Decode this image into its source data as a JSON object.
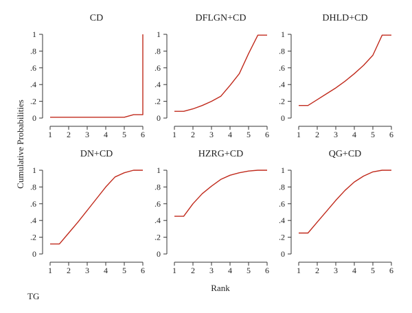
{
  "figure": {
    "ylabel": "Cumulative Probabilities",
    "xlabel": "Rank",
    "footer": "TG"
  },
  "colors": {
    "series_line": "#c0291b",
    "axis": "#333333",
    "text": "#222222"
  },
  "chart_data": [
    {
      "type": "line",
      "title": "CD",
      "xlabel": "Rank",
      "ylabel": "Cumulative Probabilities",
      "xlim": [
        1,
        6
      ],
      "ylim": [
        0,
        1
      ],
      "xticks": [
        "1",
        "2",
        "3",
        "4",
        "5",
        "6"
      ],
      "yticks": [
        "0",
        ".2",
        ".4",
        ".6",
        ".8",
        "1"
      ],
      "x": [
        1,
        4.5,
        5,
        5.5,
        6,
        6
      ],
      "values": [
        0.01,
        0.01,
        0.01,
        0.04,
        0.04,
        1.0
      ]
    },
    {
      "type": "line",
      "title": "DFLGN+CD",
      "xlabel": "Rank",
      "ylabel": "Cumulative Probabilities",
      "xlim": [
        1,
        6
      ],
      "ylim": [
        0,
        1
      ],
      "xticks": [
        "1",
        "2",
        "3",
        "4",
        "5",
        "6"
      ],
      "yticks": [
        "0",
        ".2",
        ".4",
        ".6",
        ".8",
        "1"
      ],
      "x": [
        1,
        1.5,
        2,
        2.5,
        3,
        3.5,
        4,
        4.5,
        5,
        5.5,
        6
      ],
      "values": [
        0.08,
        0.08,
        0.11,
        0.15,
        0.2,
        0.26,
        0.39,
        0.53,
        0.77,
        0.99,
        0.99
      ]
    },
    {
      "type": "line",
      "title": "DHLD+CD",
      "xlabel": "Rank",
      "ylabel": "Cumulative Probabilities",
      "xlim": [
        1,
        6
      ],
      "ylim": [
        0,
        1
      ],
      "xticks": [
        "1",
        "2",
        "3",
        "4",
        "5",
        "6"
      ],
      "yticks": [
        "0",
        ".2",
        ".4",
        ".6",
        ".8",
        "1"
      ],
      "x": [
        1,
        1.5,
        2,
        2.5,
        3,
        3.5,
        4,
        4.5,
        5,
        5.5,
        6
      ],
      "values": [
        0.15,
        0.15,
        0.22,
        0.29,
        0.36,
        0.44,
        0.53,
        0.63,
        0.75,
        0.99,
        0.99
      ]
    },
    {
      "type": "line",
      "title": "DN+CD",
      "xlabel": "Rank",
      "ylabel": "Cumulative Probabilities",
      "xlim": [
        1,
        6
      ],
      "ylim": [
        0,
        1
      ],
      "xticks": [
        "1",
        "2",
        "3",
        "4",
        "5",
        "6"
      ],
      "yticks": [
        "0",
        ".2",
        ".4",
        ".6",
        ".8",
        "1"
      ],
      "x": [
        1,
        1.5,
        2,
        2.5,
        3,
        3.5,
        4,
        4.5,
        5,
        5.5,
        6
      ],
      "values": [
        0.12,
        0.12,
        0.25,
        0.38,
        0.52,
        0.66,
        0.8,
        0.92,
        0.97,
        1.0,
        1.0
      ]
    },
    {
      "type": "line",
      "title": "HZRG+CD",
      "xlabel": "Rank",
      "ylabel": "Cumulative Probabilities",
      "xlim": [
        1,
        6
      ],
      "ylim": [
        0,
        1
      ],
      "xticks": [
        "1",
        "2",
        "3",
        "4",
        "5",
        "6"
      ],
      "yticks": [
        "0",
        ".2",
        ".4",
        ".6",
        ".8",
        "1"
      ],
      "x": [
        1,
        1.5,
        2,
        2.5,
        3,
        3.5,
        4,
        4.5,
        5,
        5.5,
        6
      ],
      "values": [
        0.45,
        0.45,
        0.6,
        0.72,
        0.81,
        0.89,
        0.94,
        0.97,
        0.99,
        1.0,
        1.0
      ]
    },
    {
      "type": "line",
      "title": "QG+CD",
      "xlabel": "Rank",
      "ylabel": "Cumulative Probabilities",
      "xlim": [
        1,
        6
      ],
      "ylim": [
        0,
        1
      ],
      "xticks": [
        "1",
        "2",
        "3",
        "4",
        "5",
        "6"
      ],
      "yticks": [
        "0",
        ".2",
        ".4",
        ".6",
        ".8",
        "1"
      ],
      "x": [
        1,
        1.5,
        2,
        2.5,
        3,
        3.5,
        4,
        4.5,
        5,
        5.5,
        6
      ],
      "values": [
        0.25,
        0.25,
        0.38,
        0.51,
        0.64,
        0.76,
        0.86,
        0.93,
        0.98,
        1.0,
        1.0
      ]
    }
  ]
}
